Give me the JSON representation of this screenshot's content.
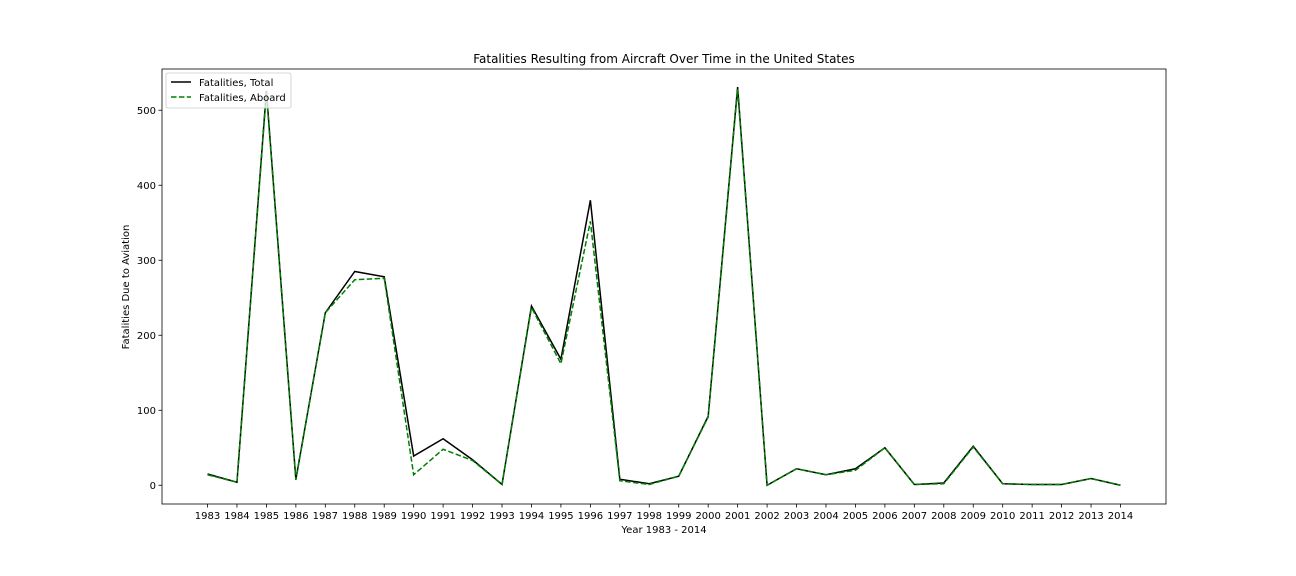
{
  "chart_data": {
    "type": "line",
    "title": "Fatalities Resulting from Aircraft Over Time in the United States",
    "xlabel": "Year 1983 - 2014",
    "ylabel": "Fatalities Due to Aviation",
    "x": [
      "1983",
      "1984",
      "1985",
      "1986",
      "1987",
      "1988",
      "1989",
      "1990",
      "1991",
      "1992",
      "1993",
      "1994",
      "1995",
      "1996",
      "1997",
      "1998",
      "1999",
      "2000",
      "2001",
      "2002",
      "2003",
      "2004",
      "2005",
      "2006",
      "2007",
      "2008",
      "2009",
      "2010",
      "2011",
      "2012",
      "2013",
      "2014"
    ],
    "ylim": [
      -25,
      555
    ],
    "yticks": [
      0,
      100,
      200,
      300,
      400,
      500
    ],
    "ytick_labels": [
      "0",
      "100",
      "200",
      "300",
      "400",
      "500"
    ],
    "grid": false,
    "legend_position": "top-left",
    "series": [
      {
        "name": "Fatalities, Total",
        "color": "#000000",
        "style": "solid",
        "values": [
          15,
          4,
          526,
          8,
          230,
          285,
          278,
          39,
          62,
          34,
          1,
          239,
          168,
          380,
          8,
          2,
          12,
          92,
          531,
          0,
          22,
          14,
          22,
          50,
          1,
          3,
          52,
          2,
          1,
          1,
          9,
          0
        ]
      },
      {
        "name": "Fatalities, Aboard",
        "color": "#008000",
        "style": "dashed",
        "values": [
          14,
          4,
          523,
          7,
          230,
          274,
          276,
          14,
          48,
          33,
          1,
          237,
          162,
          352,
          6,
          1,
          12,
          91,
          528,
          0,
          22,
          14,
          20,
          50,
          1,
          2,
          51,
          2,
          1,
          1,
          9,
          0
        ]
      }
    ]
  }
}
